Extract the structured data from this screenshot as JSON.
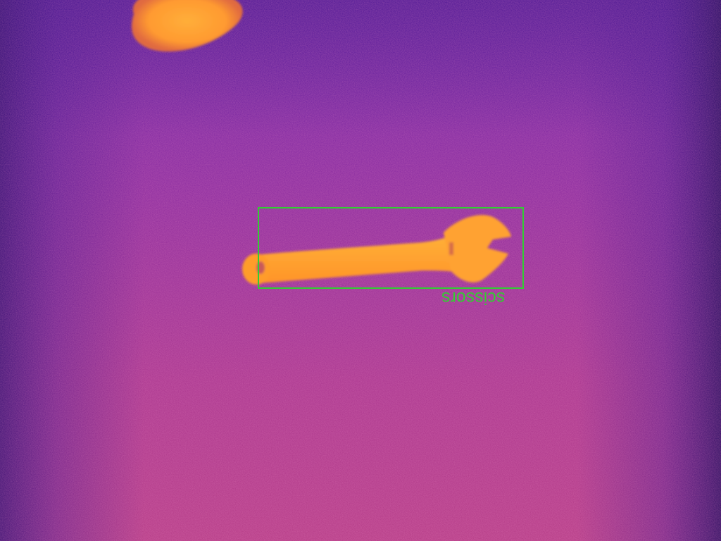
{
  "detections": [
    {
      "label": "scissors",
      "box_color": "#33cc33"
    }
  ],
  "palette": {
    "background_top": "#5b1fa0",
    "background_bottom": "#b73b86",
    "hot_object": "#ff9a2a",
    "hot_object_core": "#ffb03a"
  }
}
